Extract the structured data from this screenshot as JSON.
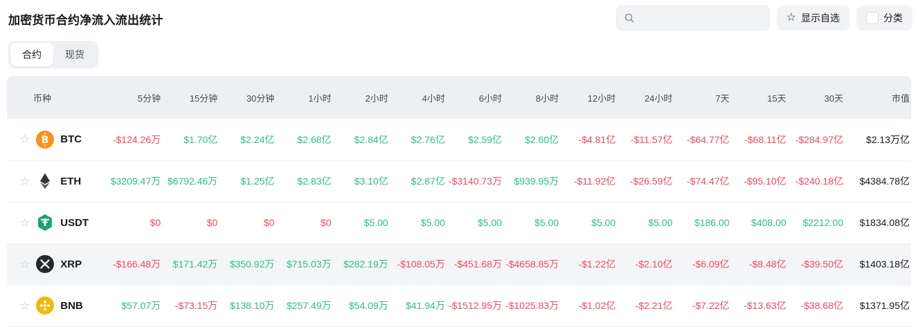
{
  "page": {
    "title": "加密货币合约净流入流出统计",
    "tabs": [
      {
        "label": "合约",
        "active": true
      },
      {
        "label": "现货",
        "active": false
      }
    ],
    "toolbar": {
      "search_placeholder": "",
      "show_favorites_label": "显示自选",
      "category_label": "分类"
    }
  },
  "colors": {
    "positive": "#2ebd85",
    "negative": "#ef4a5f",
    "neutral": "#17181c",
    "header_bg": "#edeff2",
    "highlight_row_bg": "#f4f5f7",
    "btc": "#f7931a",
    "eth": "#343434",
    "usdt": "#1ba27a",
    "xrp": "#23292f",
    "bnb": "#f0b90b"
  },
  "icons": {
    "search": "search-icon",
    "favorite": "star-icon",
    "category": "checkbox-icon"
  },
  "table": {
    "columns": [
      "币种",
      "5分钟",
      "15分钟",
      "30分钟",
      "1小时",
      "2小时",
      "4小时",
      "6小时",
      "8小时",
      "12小时",
      "24小时",
      "7天",
      "15天",
      "30天",
      "市值"
    ],
    "rows": [
      {
        "symbol": "BTC",
        "icon": "bitcoin-icon",
        "highlighted": false,
        "values": [
          {
            "t": "-$124.26万",
            "c": "neg"
          },
          {
            "t": "$1.70亿",
            "c": "pos"
          },
          {
            "t": "$2.24亿",
            "c": "pos"
          },
          {
            "t": "$2.68亿",
            "c": "pos"
          },
          {
            "t": "$2.84亿",
            "c": "pos"
          },
          {
            "t": "$2.76亿",
            "c": "pos"
          },
          {
            "t": "$2.59亿",
            "c": "pos"
          },
          {
            "t": "$2.60亿",
            "c": "pos"
          },
          {
            "t": "-$4.81亿",
            "c": "neg"
          },
          {
            "t": "-$11.57亿",
            "c": "neg"
          },
          {
            "t": "-$64.77亿",
            "c": "neg"
          },
          {
            "t": "-$68.11亿",
            "c": "neg"
          },
          {
            "t": "-$284.97亿",
            "c": "neg"
          }
        ],
        "market_cap": "$2.13万亿"
      },
      {
        "symbol": "ETH",
        "icon": "ethereum-icon",
        "highlighted": false,
        "values": [
          {
            "t": "$3209.47万",
            "c": "pos"
          },
          {
            "t": "$6792.46万",
            "c": "pos"
          },
          {
            "t": "$1.25亿",
            "c": "pos"
          },
          {
            "t": "$2.83亿",
            "c": "pos"
          },
          {
            "t": "$3.10亿",
            "c": "pos"
          },
          {
            "t": "$2.87亿",
            "c": "pos"
          },
          {
            "t": "-$3140.73万",
            "c": "neg"
          },
          {
            "t": "$939.95万",
            "c": "pos"
          },
          {
            "t": "-$11.92亿",
            "c": "neg"
          },
          {
            "t": "-$26.59亿",
            "c": "neg"
          },
          {
            "t": "-$74.47亿",
            "c": "neg"
          },
          {
            "t": "-$95.10亿",
            "c": "neg"
          },
          {
            "t": "-$240.18亿",
            "c": "neg"
          }
        ],
        "market_cap": "$4384.78亿"
      },
      {
        "symbol": "USDT",
        "icon": "tether-icon",
        "highlighted": false,
        "values": [
          {
            "t": "$0",
            "c": "neg"
          },
          {
            "t": "$0",
            "c": "neg"
          },
          {
            "t": "$0",
            "c": "neg"
          },
          {
            "t": "$0",
            "c": "neg"
          },
          {
            "t": "$5.00",
            "c": "pos"
          },
          {
            "t": "$5.00",
            "c": "pos"
          },
          {
            "t": "$5.00",
            "c": "pos"
          },
          {
            "t": "$5.00",
            "c": "pos"
          },
          {
            "t": "$5.00",
            "c": "pos"
          },
          {
            "t": "$5.00",
            "c": "pos"
          },
          {
            "t": "$186.00",
            "c": "pos"
          },
          {
            "t": "$408.00",
            "c": "pos"
          },
          {
            "t": "$2212.00",
            "c": "pos"
          }
        ],
        "market_cap": "$1834.08亿"
      },
      {
        "symbol": "XRP",
        "icon": "xrp-icon",
        "highlighted": true,
        "values": [
          {
            "t": "-$166.48万",
            "c": "neg"
          },
          {
            "t": "$171.42万",
            "c": "pos"
          },
          {
            "t": "$350.92万",
            "c": "pos"
          },
          {
            "t": "$715.03万",
            "c": "pos"
          },
          {
            "t": "$282.19万",
            "c": "pos"
          },
          {
            "t": "-$108.05万",
            "c": "neg"
          },
          {
            "t": "-$451.68万",
            "c": "neg"
          },
          {
            "t": "-$4658.85万",
            "c": "neg"
          },
          {
            "t": "-$1.22亿",
            "c": "neg"
          },
          {
            "t": "-$2.10亿",
            "c": "neg"
          },
          {
            "t": "-$6.09亿",
            "c": "neg"
          },
          {
            "t": "-$8.48亿",
            "c": "neg"
          },
          {
            "t": "-$39.50亿",
            "c": "neg"
          }
        ],
        "market_cap": "$1403.18亿"
      },
      {
        "symbol": "BNB",
        "icon": "bnb-icon",
        "highlighted": false,
        "values": [
          {
            "t": "$57.07万",
            "c": "pos"
          },
          {
            "t": "-$73.15万",
            "c": "neg"
          },
          {
            "t": "$138.10万",
            "c": "pos"
          },
          {
            "t": "$257.49万",
            "c": "pos"
          },
          {
            "t": "$54.09万",
            "c": "pos"
          },
          {
            "t": "$41.94万",
            "c": "pos"
          },
          {
            "t": "-$1512.95万",
            "c": "neg"
          },
          {
            "t": "-$1025.83万",
            "c": "neg"
          },
          {
            "t": "-$1.02亿",
            "c": "neg"
          },
          {
            "t": "-$2.21亿",
            "c": "neg"
          },
          {
            "t": "-$7.22亿",
            "c": "neg"
          },
          {
            "t": "-$13.63亿",
            "c": "neg"
          },
          {
            "t": "-$38.68亿",
            "c": "neg"
          }
        ],
        "market_cap": "$1371.95亿"
      }
    ]
  }
}
